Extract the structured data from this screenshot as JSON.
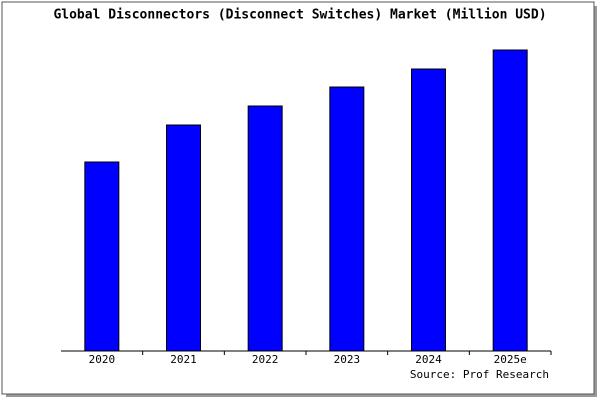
{
  "chart_data": {
    "type": "bar",
    "title": "Global Disconnectors (Disconnect Switches) Market (Million USD)",
    "categories": [
      "2020",
      "2021",
      "2022",
      "2023",
      "2024",
      "2025e"
    ],
    "values": [
      189,
      226,
      245,
      264,
      282,
      301
    ],
    "color": "#0000ff",
    "ylim": [
      0,
      306
    ],
    "source": "Source: Prof Research"
  }
}
